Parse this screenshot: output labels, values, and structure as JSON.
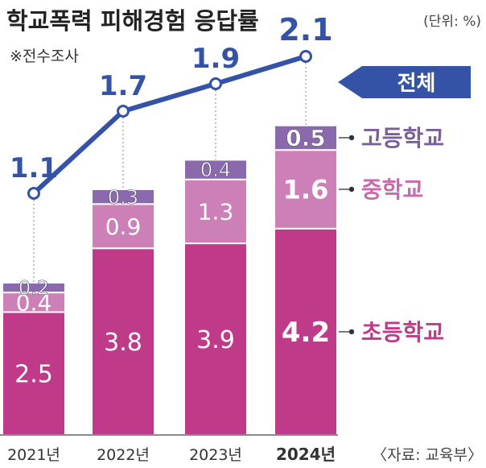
{
  "chart_data": {
    "type": "bar",
    "stacked": true,
    "title": "학교폭력 피해경험 응답률",
    "unit_note": "(단위: %)",
    "subtitle": "※전수조사",
    "source": "〈자료: 교육부〉",
    "categories": [
      "2021년",
      "2022년",
      "2023년",
      "2024년"
    ],
    "highlight_category": "2024년",
    "series": [
      {
        "name": "초등학교",
        "values": [
          2.5,
          3.8,
          3.9,
          4.2
        ],
        "color": "#c03a8a",
        "label_color": "#c03a8a"
      },
      {
        "name": "중학교",
        "values": [
          0.4,
          0.9,
          1.3,
          1.6
        ],
        "color": "#cd7fb8",
        "label_color": "#c86aac"
      },
      {
        "name": "고등학교",
        "values": [
          0.2,
          0.3,
          0.4,
          0.5
        ],
        "color": "#8a6aac",
        "label_color": "#7a5f9c"
      }
    ],
    "total_series": {
      "name": "전체",
      "values": [
        1.1,
        1.7,
        1.9,
        2.1
      ],
      "color": "#3553a6"
    },
    "grid": false
  }
}
